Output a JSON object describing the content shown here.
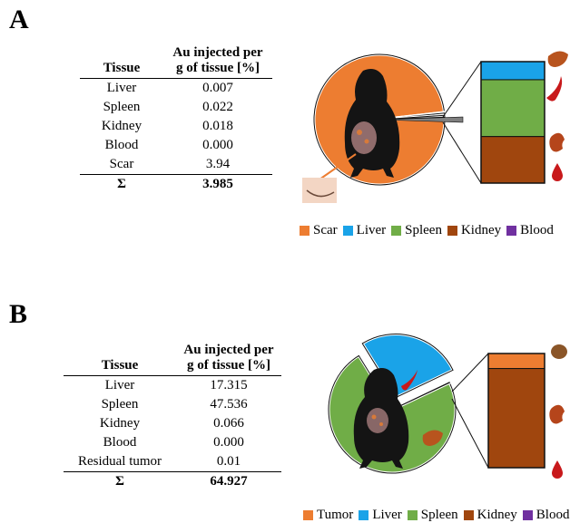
{
  "panels": {
    "a": {
      "letter": "A",
      "table": {
        "headers": [
          "Tissue",
          "Au injected per g of tissue [%]"
        ],
        "rows": [
          [
            "Liver",
            "0.007"
          ],
          [
            "Spleen",
            "0.022"
          ],
          [
            "Kidney",
            "0.018"
          ],
          [
            "Blood",
            "0.000"
          ],
          [
            "Scar",
            "3.94"
          ]
        ],
        "sum": [
          "Σ",
          "3.985"
        ]
      }
    },
    "b": {
      "letter": "B",
      "table": {
        "headers": [
          "Tissue",
          "Au injected per g of tissue [%]"
        ],
        "rows": [
          [
            "Liver",
            "17.315"
          ],
          [
            "Spleen",
            "47.536"
          ],
          [
            "Kidney",
            "0.066"
          ],
          [
            "Blood",
            "0.000"
          ],
          [
            "Residual tumor",
            "0.01"
          ]
        ],
        "sum": [
          "Σ",
          "64.927"
        ]
      }
    }
  },
  "chart_data": [
    {
      "type": "pie",
      "categories": [
        "Scar",
        "Liver",
        "Spleen",
        "Kidney",
        "Blood"
      ],
      "values": [
        3.94,
        0.007,
        0.022,
        0.018,
        0.0
      ],
      "breakout_bar": {
        "categories": [
          "Liver",
          "Spleen",
          "Kidney",
          "Blood"
        ],
        "values": [
          0.007,
          0.022,
          0.018,
          0.0
        ]
      },
      "colors": {
        "Scar": "#ed7d31",
        "Liver": "#1aa3e8",
        "Spleen": "#70ad47",
        "Kidney": "#a0460e",
        "Blood": "#7030a0"
      },
      "legend": [
        "Scar",
        "Liver",
        "Spleen",
        "Kidney",
        "Blood"
      ],
      "legend_position": "bottom"
    },
    {
      "type": "pie",
      "categories": [
        "Spleen",
        "Liver",
        "Tumor",
        "Kidney",
        "Blood"
      ],
      "values": [
        47.536,
        17.315,
        0.01,
        0.066,
        0.0
      ],
      "breakout_bar": {
        "categories": [
          "Tumor",
          "Kidney",
          "Blood"
        ],
        "values": [
          0.01,
          0.066,
          0.0
        ]
      },
      "exploded": [
        "Liver"
      ],
      "colors": {
        "Tumor": "#ed7d31",
        "Liver": "#1aa3e8",
        "Spleen": "#70ad47",
        "Kidney": "#a0460e",
        "Blood": "#7030a0"
      },
      "legend": [
        "Tumor",
        "Liver",
        "Spleen",
        "Kidney",
        "Blood"
      ],
      "legend_position": "bottom"
    }
  ]
}
